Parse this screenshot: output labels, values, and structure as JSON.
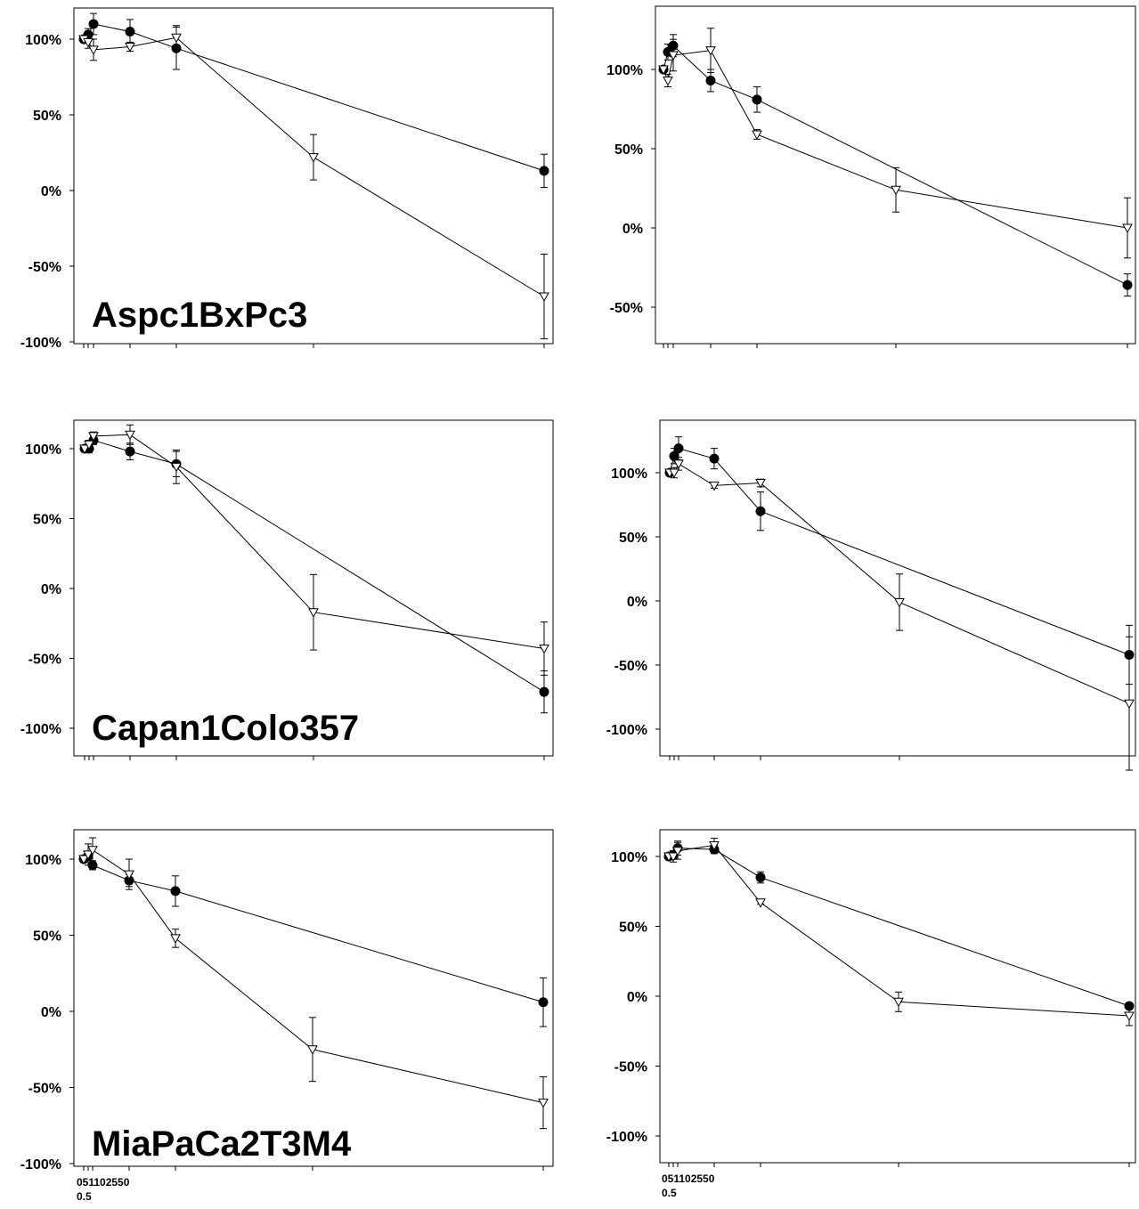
{
  "chart_data": [
    {
      "type": "line",
      "panel_label_parts": [
        "Aspc1",
        "BxPc3"
      ],
      "panel_label": "Aspc1BxPc3",
      "x": [
        0,
        0.5,
        1,
        10,
        20,
        50,
        100
      ],
      "x_tick_labels": [],
      "y_tick_labels": [
        "100%",
        "50%",
        "0%",
        "-50%",
        "-100%"
      ],
      "ylim": [
        -100,
        100
      ],
      "series": [
        {
          "marker": "filled-circle",
          "values": [
            100,
            103,
            110,
            105,
            94,
            null,
            13
          ],
          "errors": [
            0,
            4,
            7,
            8,
            14,
            null,
            11
          ]
        },
        {
          "marker": "open-triangle-down",
          "values": [
            100,
            98,
            93,
            95,
            101,
            22,
            -70
          ],
          "errors": [
            0,
            4,
            7,
            3,
            8,
            15,
            28
          ]
        }
      ]
    },
    {
      "type": "line",
      "x": [
        0,
        0.5,
        1,
        10,
        20,
        50,
        100
      ],
      "x_tick_labels": [],
      "y_tick_labels": [
        "100%",
        "50%",
        "0%",
        "-50%"
      ],
      "ylim": [
        -75,
        140
      ],
      "series": [
        {
          "marker": "filled-circle",
          "values": [
            100,
            111,
            115,
            93,
            81,
            null,
            -36
          ],
          "errors": [
            0,
            5,
            7,
            7,
            8,
            null,
            7
          ]
        },
        {
          "marker": "open-triangle-down",
          "values": [
            100,
            93,
            109,
            112,
            59,
            24,
            0
          ],
          "errors": [
            0,
            4,
            10,
            14,
            3,
            14,
            19
          ]
        }
      ]
    },
    {
      "type": "line",
      "panel_label_parts": [
        "Capan1",
        "Colo357"
      ],
      "panel_label": "Capan1Colo357",
      "x": [
        0,
        0.5,
        1,
        10,
        20,
        50,
        100
      ],
      "x_tick_labels": [],
      "y_tick_labels": [
        "100%",
        "50%",
        "0%",
        "-50%",
        "-100%"
      ],
      "ylim": [
        -120,
        120
      ],
      "series": [
        {
          "marker": "filled-circle",
          "values": [
            100,
            100,
            106,
            98,
            89,
            null,
            -74
          ],
          "errors": [
            0,
            3,
            3,
            6,
            9,
            null,
            15
          ]
        },
        {
          "marker": "open-triangle-down",
          "values": [
            100,
            103,
            109,
            110,
            87,
            -17,
            -43
          ],
          "errors": [
            0,
            3,
            3,
            7,
            12,
            27,
            19
          ]
        }
      ]
    },
    {
      "type": "line",
      "x": [
        0,
        0.5,
        1,
        10,
        20,
        50,
        100
      ],
      "x_tick_labels": [],
      "y_tick_labels": [
        "100%",
        "50%",
        "0%",
        "-50%",
        "-100%"
      ],
      "ylim": [
        -120,
        140
      ],
      "series": [
        {
          "marker": "filled-circle",
          "values": [
            100,
            113,
            119,
            111,
            70,
            null,
            -42
          ],
          "errors": [
            0,
            6,
            9,
            8,
            15,
            null,
            23
          ]
        },
        {
          "marker": "open-triangle-down",
          "values": [
            100,
            100,
            107,
            90,
            92,
            -1,
            -80
          ],
          "errors": [
            0,
            4,
            5,
            2,
            3,
            22,
            52
          ]
        }
      ]
    },
    {
      "type": "line",
      "panel_label_parts": [
        "MiaPaCa2",
        "T3M4"
      ],
      "panel_label": "MiaPaCa2T3M4",
      "x": [
        0,
        0.5,
        1,
        10,
        20,
        50,
        100
      ],
      "x_tick_labels": [
        "0",
        "5",
        "1",
        "10",
        "25",
        "50",
        "0.5"
      ],
      "x_tick_label_text": "051102550",
      "x_tick_label_sub": "0.5",
      "y_tick_labels": [
        "100%",
        "50%",
        "0%",
        "-50%",
        "-100%"
      ],
      "ylim": [
        -100,
        120
      ],
      "series": [
        {
          "marker": "filled-circle",
          "values": [
            100,
            102,
            96,
            86,
            79,
            null,
            6
          ],
          "errors": [
            0,
            3,
            3,
            4,
            10,
            null,
            16
          ]
        },
        {
          "marker": "open-triangle-down",
          "values": [
            100,
            103,
            106,
            90,
            48,
            -25,
            -60
          ],
          "errors": [
            0,
            7,
            8,
            10,
            6,
            21,
            17
          ]
        }
      ]
    },
    {
      "type": "line",
      "x": [
        0,
        0.5,
        1,
        10,
        20,
        50,
        100
      ],
      "x_tick_labels": [
        "0",
        "5",
        "1",
        "10",
        "25",
        "50",
        "0.5"
      ],
      "x_tick_label_text": "051102550",
      "x_tick_label_sub": "0.5",
      "y_tick_labels": [
        "100%",
        "50%",
        "0%",
        "-50%",
        "-100%"
      ],
      "ylim": [
        -120,
        120
      ],
      "series": [
        {
          "marker": "filled-circle",
          "values": [
            100,
            101,
            106,
            105,
            85,
            null,
            -7
          ],
          "errors": [
            0,
            3,
            5,
            3,
            4,
            null,
            0
          ]
        },
        {
          "marker": "open-triangle-down",
          "values": [
            100,
            100,
            104,
            108,
            67,
            -4,
            -14
          ],
          "errors": [
            0,
            4,
            6,
            5,
            1,
            7,
            7
          ]
        }
      ]
    }
  ]
}
